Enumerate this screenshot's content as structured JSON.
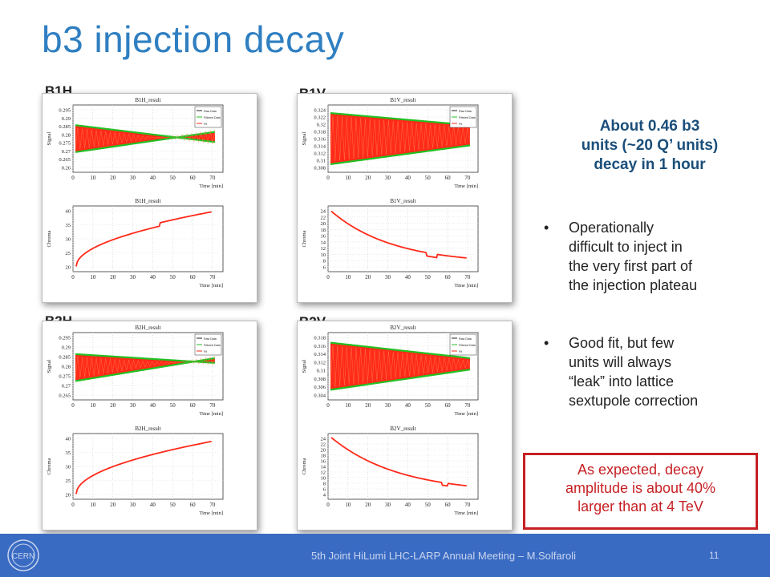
{
  "slide": {
    "title": "b3 injection decay"
  },
  "panels": [
    {
      "label": "B1H",
      "top_title": "B1H_result",
      "bottom_title": "B1H_result",
      "top_ylabel": "Signal",
      "bottom_ylabel": "Chroma",
      "top_yticks": [
        "0.295",
        "0.29",
        "0.285",
        "0.28",
        "0.275",
        "0.27",
        "0.265",
        "0.26"
      ],
      "bottom_yticks": [
        "40",
        "35",
        "30",
        "25",
        "20"
      ]
    },
    {
      "label": "B1V",
      "top_title": "B1V_result",
      "bottom_title": "B1V_result",
      "top_ylabel": "Signal",
      "bottom_ylabel": "Chroma",
      "top_yticks": [
        "0.324",
        "0.322",
        "0.32",
        "0.318",
        "0.316",
        "0.314",
        "0.312",
        "0.31",
        "0.308"
      ],
      "bottom_yticks": [
        "24",
        "22",
        "20",
        "18",
        "16",
        "14",
        "12",
        "10",
        "8",
        "6"
      ]
    },
    {
      "label": "B2H",
      "top_title": "B2H_result",
      "bottom_title": "B2H_result",
      "top_ylabel": "Signal",
      "bottom_ylabel": "Chroma",
      "top_yticks": [
        "0.295",
        "0.29",
        "0.285",
        "0.28",
        "0.275",
        "0.27",
        "0.265"
      ],
      "bottom_yticks": [
        "40",
        "35",
        "30",
        "25",
        "20"
      ]
    },
    {
      "label": "B2V",
      "top_title": "B2V_result",
      "bottom_title": "B2V_result",
      "top_ylabel": "Signal",
      "bottom_ylabel": "Chroma",
      "top_yticks": [
        "0.318",
        "0.316",
        "0.314",
        "0.312",
        "0.31",
        "0.308",
        "0.306",
        "0.304"
      ],
      "bottom_yticks": [
        "24",
        "22",
        "20",
        "18",
        "16",
        "14",
        "12",
        "10",
        "8",
        "6",
        "4"
      ]
    }
  ],
  "x_axis": {
    "ticks": [
      "0",
      "10",
      "20",
      "30",
      "40",
      "50",
      "60",
      "70"
    ],
    "label": "Time [min]"
  },
  "legend_entries": [
    "Raw Data",
    "Filtered Data",
    "Fit"
  ],
  "summary": {
    "lines": [
      "About 0.46 b3",
      "units (~20 Q’ units)",
      "decay in 1 hour"
    ]
  },
  "bullets": [
    {
      "lines": [
        "Operationally",
        "difficult to inject in",
        "the very first part of",
        "the injection plateau"
      ]
    },
    {
      "lines": [
        "Good fit, but few",
        "units will always",
        "“leak” into lattice",
        "sextupole correction"
      ]
    }
  ],
  "callout": {
    "lines": [
      "As expected, decay",
      "amplitude is about 40%",
      "larger than at 4 TeV"
    ]
  },
  "footer": {
    "text": "5th Joint HiLumi LHC-LARP Annual Meeting – M.Solfaroli",
    "page": "11",
    "logo_text": "CERN"
  },
  "colors": {
    "title": "#2f7fc1",
    "footer_bar": "#3a6bc3",
    "signal": "#ff2a1a",
    "envelope": "#22c022",
    "callout": "#c62024"
  }
}
